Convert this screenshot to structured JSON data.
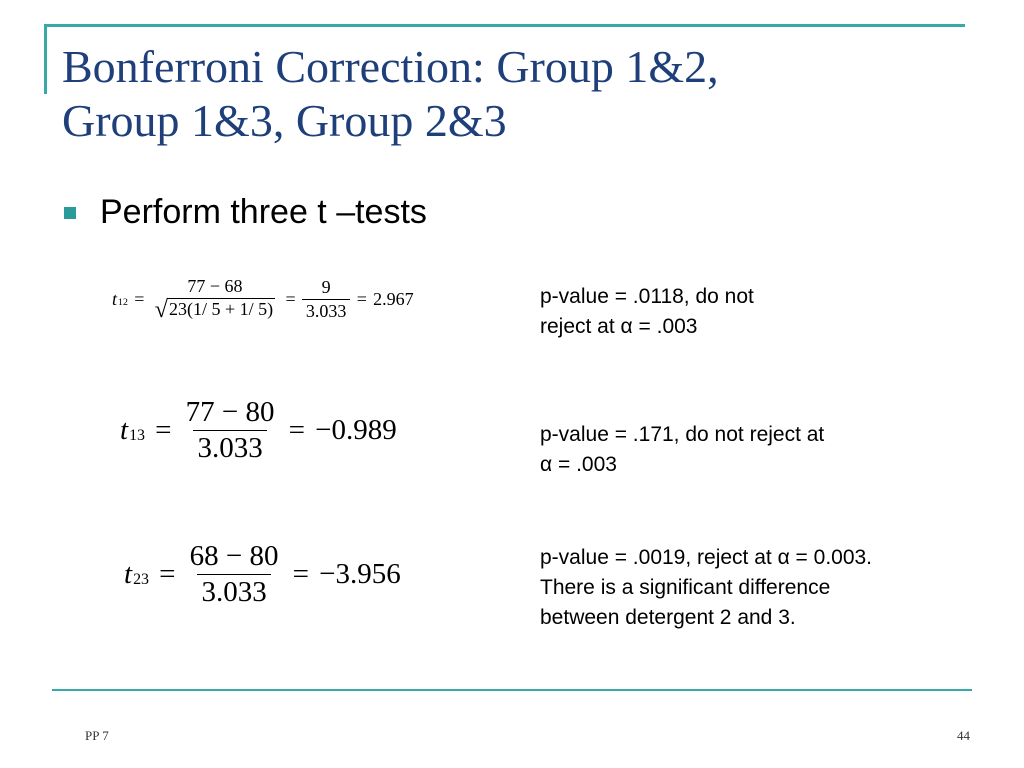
{
  "slide": {
    "title_line1": "Bonferroni Correction: Group 1&2,",
    "title_line2": "Group 1&3, Group 2&3",
    "bullet": "Perform three t –tests"
  },
  "formulas": [
    {
      "var": "t",
      "sub": "12",
      "num1": "77 − 68",
      "den_sqrt": "23(1/ 5 + 1/ 5)",
      "num2": "9",
      "den2": "3.033",
      "result": "2.967"
    },
    {
      "var": "t",
      "sub": "13",
      "num": "77 − 80",
      "den": "3.033",
      "result": "−0.989"
    },
    {
      "var": "t",
      "sub": "23",
      "num": "68 − 80",
      "den": "3.033",
      "result": "−3.956"
    }
  ],
  "notes": [
    {
      "line1": "p-value = .0118, do not",
      "line2": "reject at α = .003"
    },
    {
      "line1": "p-value = .171, do not reject at",
      "line2": "α = .003"
    },
    {
      "line1": "p-value = .0019, reject at α = 0.003.",
      "line2": "There is a significant difference",
      "line3": "between detergent 2 and 3."
    }
  ],
  "footer": {
    "left": "PP 7",
    "page": "44"
  },
  "colors": {
    "accent": "#3aa8a8",
    "title": "#1e3f7a",
    "bullet": "#2a9a9a"
  }
}
